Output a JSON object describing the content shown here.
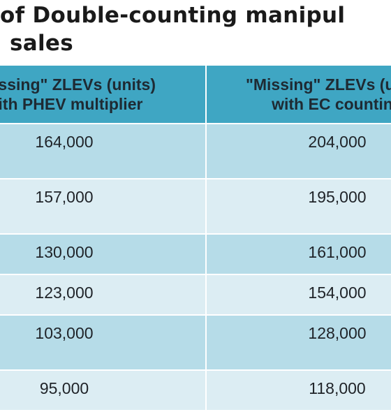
{
  "title": {
    "line1": "of Double-counting manipul",
    "line2": "sales"
  },
  "table": {
    "headers": [
      {
        "line1": "\"Missing\" ZLEVs (units)",
        "line2": "with PHEV multiplier"
      },
      {
        "line1": "\"Missing\" ZLEVs (units)",
        "line2": "with EC counting"
      }
    ],
    "rows": [
      {
        "phev": "164,000",
        "ec": "204,000"
      },
      {
        "phev": "157,000",
        "ec": "195,000"
      },
      {
        "phev": "130,000",
        "ec": "161,000"
      },
      {
        "phev": "123,000",
        "ec": "154,000"
      },
      {
        "phev": "103,000",
        "ec": "128,000"
      },
      {
        "phev": "95,000",
        "ec": "118,000"
      }
    ]
  },
  "colors": {
    "header": "#3fa6c3",
    "row_dark": "#b6dce8",
    "row_light": "#dcedf3"
  }
}
